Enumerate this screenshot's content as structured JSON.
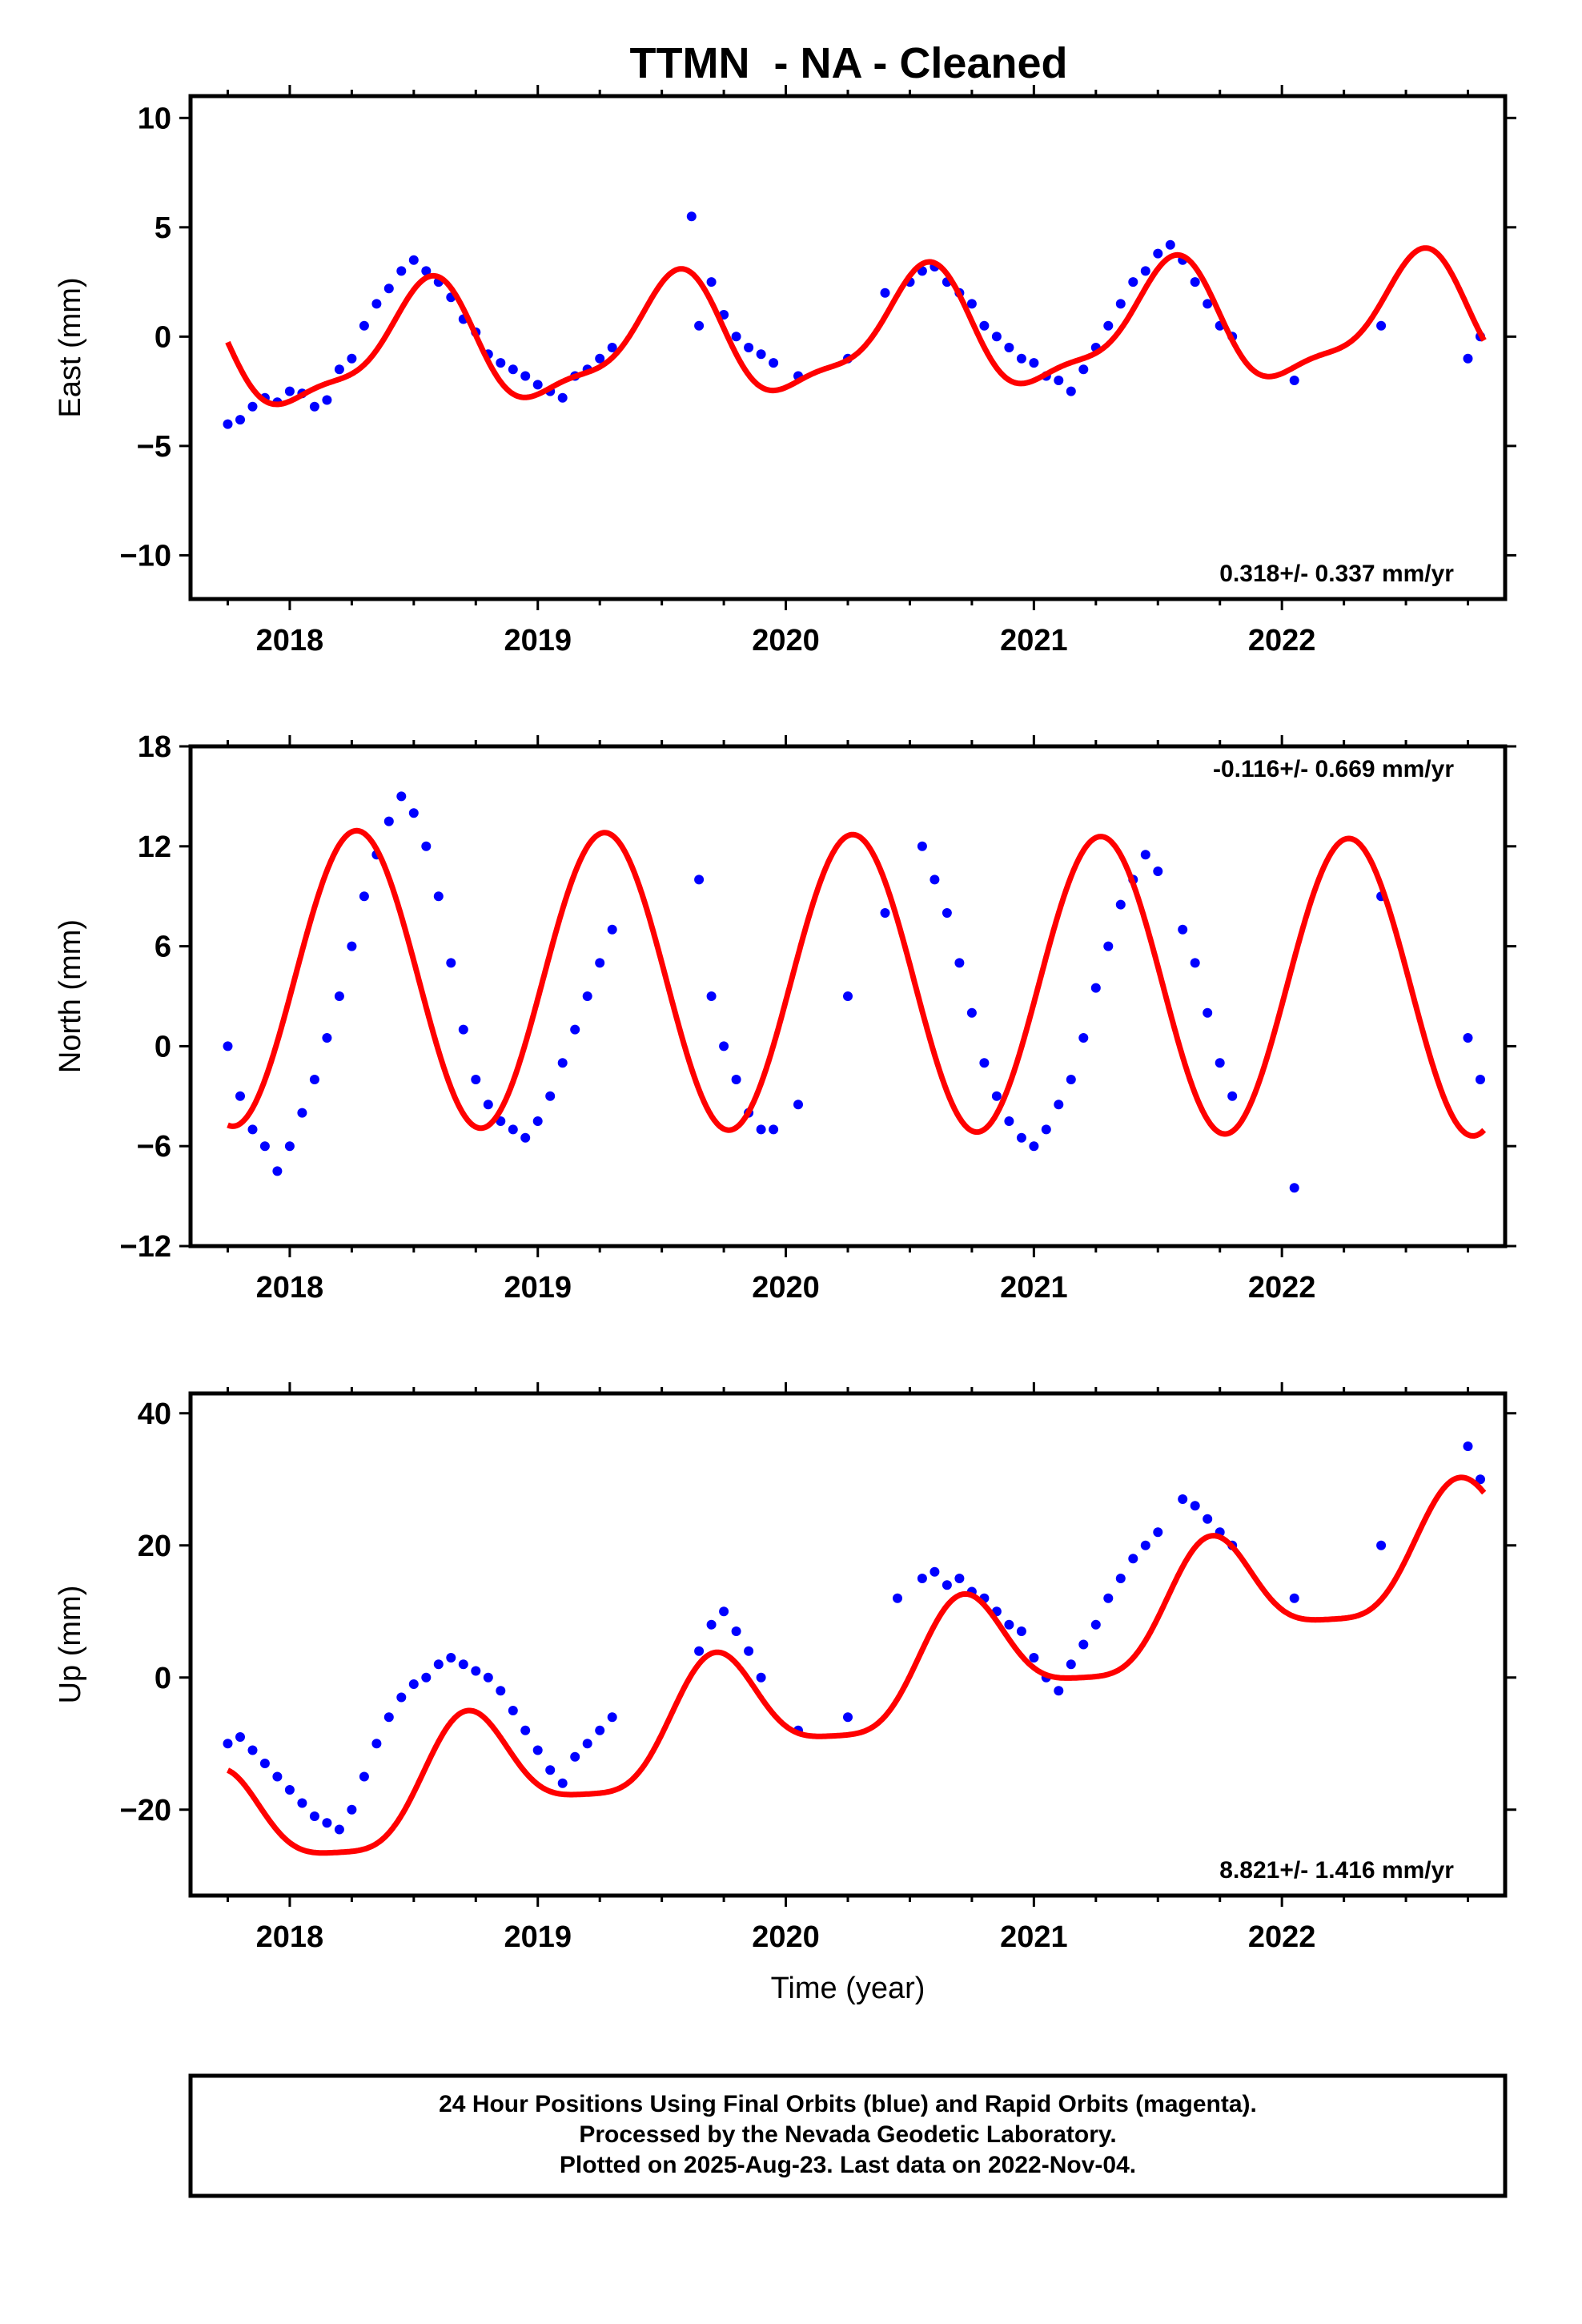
{
  "title": "TTMN  - NA - Cleaned",
  "colors": {
    "points": "#0000ff",
    "fit": "#ff0000",
    "frame": "#000000"
  },
  "footer": {
    "line1": "24 Hour Positions Using Final Orbits (blue) and Rapid Orbits (magenta).",
    "line2": "Processed by the Nevada Geodetic Laboratory.",
    "line3": "Plotted on 2025-Aug-23. Last data on 2022-Nov-04."
  },
  "chart_data": [
    {
      "type": "scatter",
      "component": "east",
      "ylabel": "East (mm)",
      "xlabel": "",
      "xlim": [
        2017.6,
        2022.9
      ],
      "ylim": [
        -12,
        11
      ],
      "xticks": [
        2018,
        2019,
        2020,
        2021,
        2022
      ],
      "yticks": [
        -10,
        -5,
        0,
        5,
        10
      ],
      "ytick_labels": [
        "−10",
        "−5",
        "0",
        "5",
        "10"
      ],
      "rate": "0.318+/- 0.337 mm/yr",
      "rate_position": "bottom-right",
      "model": {
        "trend": 0.318,
        "offset": 0.0,
        "annual_amp": 2.6,
        "annual_phase": 0.55,
        "semi_amp": 0.8,
        "semi_phase": 0.6
      },
      "series": [
        {
          "x": [
            2017.75,
            2017.8,
            2017.85,
            2017.9,
            2017.95,
            2018.0,
            2018.05,
            2018.1,
            2018.15,
            2018.2,
            2018.25,
            2018.3,
            2018.35,
            2018.4,
            2018.45,
            2018.5,
            2018.55,
            2018.6,
            2018.65,
            2018.7,
            2018.75,
            2018.8,
            2018.85,
            2018.9,
            2018.95,
            2019.0,
            2019.05,
            2019.1,
            2019.15,
            2019.2,
            2019.25,
            2019.3,
            2019.62,
            2019.65,
            2019.7,
            2019.75,
            2019.8,
            2019.85,
            2019.9,
            2019.95,
            2020.05,
            2020.25,
            2020.4,
            2020.5,
            2020.55,
            2020.6,
            2020.65,
            2020.7,
            2020.75,
            2020.8,
            2020.85,
            2020.9,
            2020.95,
            2021.0,
            2021.05,
            2021.1,
            2021.15,
            2021.2,
            2021.25,
            2021.3,
            2021.35,
            2021.4,
            2021.45,
            2021.5,
            2021.55,
            2021.6,
            2021.65,
            2021.7,
            2021.75,
            2021.8,
            2022.05,
            2022.4,
            2022.75,
            2022.8
          ],
          "y": [
            -4.0,
            -3.8,
            -3.2,
            -2.8,
            -3.0,
            -2.5,
            -2.6,
            -3.2,
            -2.9,
            -1.5,
            -1.0,
            0.5,
            1.5,
            2.2,
            3.0,
            3.5,
            3.0,
            2.5,
            1.8,
            0.8,
            0.2,
            -0.8,
            -1.2,
            -1.5,
            -1.8,
            -2.2,
            -2.5,
            -2.8,
            -1.8,
            -1.5,
            -1.0,
            -0.5,
            5.5,
            0.5,
            2.5,
            1.0,
            0.0,
            -0.5,
            -0.8,
            -1.2,
            -1.8,
            -1.0,
            2.0,
            2.5,
            3.0,
            3.2,
            2.5,
            2.0,
            1.5,
            0.5,
            0.0,
            -0.5,
            -1.0,
            -1.2,
            -1.8,
            -2.0,
            -2.5,
            -1.5,
            -0.5,
            0.5,
            1.5,
            2.5,
            3.0,
            3.8,
            4.2,
            3.5,
            2.5,
            1.5,
            0.5,
            0.0,
            -2.0,
            0.5,
            -1.0,
            0.0
          ]
        }
      ]
    },
    {
      "type": "scatter",
      "component": "north",
      "ylabel": "North (mm)",
      "xlabel": "",
      "xlim": [
        2017.6,
        2022.9
      ],
      "ylim": [
        -12,
        18
      ],
      "xticks": [
        2018,
        2019,
        2020,
        2021,
        2022
      ],
      "yticks": [
        -12,
        -6,
        0,
        6,
        12,
        18
      ],
      "ytick_labels": [
        "−12",
        "−6",
        "0",
        "6",
        "12",
        "18"
      ],
      "rate": "-0.116+/- 0.669 mm/yr",
      "rate_position": "top-right",
      "model": {
        "trend": -0.116,
        "offset": 3.8,
        "annual_amp": 8.9,
        "annual_phase": 0.27,
        "semi_amp": 0.0,
        "semi_phase": 0.0
      },
      "series": [
        {
          "x": [
            2017.75,
            2017.8,
            2017.85,
            2017.9,
            2017.95,
            2018.0,
            2018.05,
            2018.1,
            2018.15,
            2018.2,
            2018.25,
            2018.3,
            2018.35,
            2018.4,
            2018.45,
            2018.5,
            2018.55,
            2018.6,
            2018.65,
            2018.7,
            2018.75,
            2018.8,
            2018.85,
            2018.9,
            2018.95,
            2019.0,
            2019.05,
            2019.1,
            2019.15,
            2019.2,
            2019.25,
            2019.3,
            2019.65,
            2019.7,
            2019.75,
            2019.8,
            2019.85,
            2019.9,
            2019.95,
            2020.05,
            2020.25,
            2020.4,
            2020.55,
            2020.6,
            2020.65,
            2020.7,
            2020.75,
            2020.8,
            2020.85,
            2020.9,
            2020.95,
            2021.0,
            2021.05,
            2021.1,
            2021.15,
            2021.2,
            2021.25,
            2021.3,
            2021.35,
            2021.4,
            2021.45,
            2021.5,
            2021.6,
            2021.65,
            2021.7,
            2021.75,
            2021.8,
            2022.05,
            2022.4,
            2022.75,
            2022.8
          ],
          "y": [
            0.0,
            -3.0,
            -5.0,
            -6.0,
            -7.5,
            -6.0,
            -4.0,
            -2.0,
            0.5,
            3.0,
            6.0,
            9.0,
            11.5,
            13.5,
            15.0,
            14.0,
            12.0,
            9.0,
            5.0,
            1.0,
            -2.0,
            -3.5,
            -4.5,
            -5.0,
            -5.5,
            -4.5,
            -3.0,
            -1.0,
            1.0,
            3.0,
            5.0,
            7.0,
            10.0,
            3.0,
            0.0,
            -2.0,
            -4.0,
            -5.0,
            -5.0,
            -3.5,
            3.0,
            8.0,
            12.0,
            10.0,
            8.0,
            5.0,
            2.0,
            -1.0,
            -3.0,
            -4.5,
            -5.5,
            -6.0,
            -5.0,
            -3.5,
            -2.0,
            0.5,
            3.5,
            6.0,
            8.5,
            10.0,
            11.5,
            10.5,
            7.0,
            5.0,
            2.0,
            -1.0,
            -3.0,
            -8.5,
            9.0,
            0.5,
            -2.0
          ]
        }
      ]
    },
    {
      "type": "scatter",
      "component": "up",
      "ylabel": "Up (mm)",
      "xlabel": "Time (year)",
      "xlim": [
        2017.6,
        2022.9
      ],
      "ylim": [
        -33,
        43
      ],
      "xticks": [
        2018,
        2019,
        2020,
        2021,
        2022
      ],
      "yticks": [
        -20,
        0,
        20,
        40
      ],
      "ytick_labels": [
        "−20",
        "0",
        "20",
        "40"
      ],
      "rate": "8.821+/- 1.416 mm/yr",
      "rate_position": "bottom-right",
      "model": {
        "trend": 8.821,
        "offset": -1.5,
        "annual_amp": 8.5,
        "annual_phase": 0.72,
        "semi_amp": 2.0,
        "semi_phase": 0.2
      },
      "series": [
        {
          "x": [
            2017.75,
            2017.8,
            2017.85,
            2017.9,
            2017.95,
            2018.0,
            2018.05,
            2018.1,
            2018.15,
            2018.2,
            2018.25,
            2018.3,
            2018.35,
            2018.4,
            2018.45,
            2018.5,
            2018.55,
            2018.6,
            2018.65,
            2018.7,
            2018.75,
            2018.8,
            2018.85,
            2018.9,
            2018.95,
            2019.0,
            2019.05,
            2019.1,
            2019.15,
            2019.2,
            2019.25,
            2019.3,
            2019.65,
            2019.7,
            2019.75,
            2019.8,
            2019.85,
            2019.9,
            2020.05,
            2020.25,
            2020.45,
            2020.55,
            2020.6,
            2020.65,
            2020.7,
            2020.75,
            2020.8,
            2020.85,
            2020.9,
            2020.95,
            2021.0,
            2021.05,
            2021.1,
            2021.15,
            2021.2,
            2021.25,
            2021.3,
            2021.35,
            2021.4,
            2021.45,
            2021.5,
            2021.6,
            2021.65,
            2021.7,
            2021.75,
            2021.8,
            2022.05,
            2022.4,
            2022.75,
            2022.8
          ],
          "y": [
            -10.0,
            -9.0,
            -11.0,
            -13.0,
            -15.0,
            -17.0,
            -19.0,
            -21.0,
            -22.0,
            -23.0,
            -20.0,
            -15.0,
            -10.0,
            -6.0,
            -3.0,
            -1.0,
            0.0,
            2.0,
            3.0,
            2.0,
            1.0,
            0.0,
            -2.0,
            -5.0,
            -8.0,
            -11.0,
            -14.0,
            -16.0,
            -12.0,
            -10.0,
            -8.0,
            -6.0,
            4.0,
            8.0,
            10.0,
            7.0,
            4.0,
            0.0,
            -8.0,
            -6.0,
            12.0,
            15.0,
            16.0,
            14.0,
            15.0,
            13.0,
            12.0,
            10.0,
            8.0,
            7.0,
            3.0,
            0.0,
            -2.0,
            2.0,
            5.0,
            8.0,
            12.0,
            15.0,
            18.0,
            20.0,
            22.0,
            27.0,
            26.0,
            24.0,
            22.0,
            20.0,
            12.0,
            20.0,
            35.0,
            30.0
          ]
        }
      ]
    }
  ]
}
